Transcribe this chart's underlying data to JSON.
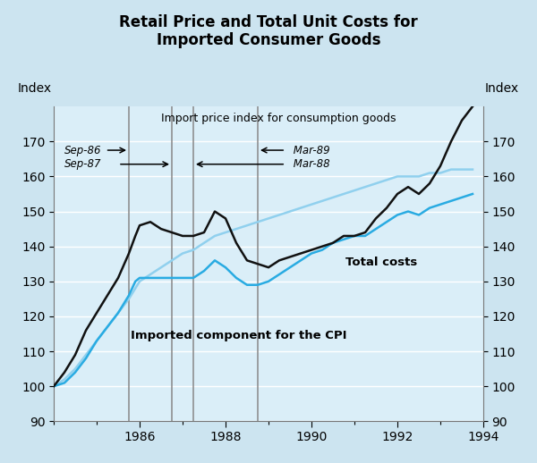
{
  "title": "Retail Price and Total Unit Costs for\nImported Consumer Goods",
  "bg_color": "#cce4f0",
  "plot_bg_color": "#daeef8",
  "grid_color": "#ffffff",
  "vline_color": "#888888",
  "ylim": [
    90,
    180
  ],
  "xlim": [
    1984.0,
    1994.0
  ],
  "yticks": [
    90,
    100,
    110,
    120,
    130,
    140,
    150,
    160,
    170
  ],
  "xticks": [
    1986,
    1988,
    1990,
    1992,
    1994
  ],
  "color_black": "#111111",
  "color_dark_blue": "#29ABE2",
  "color_light_blue": "#90D0EE",
  "label_import_price": "Import price index for consumption goods",
  "label_total_costs": "Total costs",
  "label_cpi": "Imported component for the CPI",
  "import_price_x": [
    1984.0,
    1984.25,
    1984.5,
    1984.75,
    1985.0,
    1985.25,
    1985.5,
    1985.75,
    1985.9,
    1986.0,
    1986.25,
    1986.5,
    1986.75,
    1987.0,
    1987.25,
    1987.5,
    1987.75,
    1988.0,
    1988.25,
    1988.5,
    1988.75,
    1989.0,
    1989.25,
    1989.5,
    1989.75,
    1990.0,
    1990.25,
    1990.5,
    1990.75,
    1991.0,
    1991.25,
    1991.5,
    1991.75,
    1992.0,
    1992.25,
    1992.5,
    1992.75,
    1993.0,
    1993.25,
    1993.5,
    1993.75
  ],
  "import_price_y": [
    100,
    104,
    109,
    116,
    121,
    126,
    131,
    138,
    143,
    146,
    147,
    145,
    144,
    143,
    143,
    144,
    150,
    148,
    141,
    136,
    135,
    134,
    136,
    137,
    138,
    139,
    140,
    141,
    143,
    143,
    144,
    148,
    151,
    155,
    157,
    155,
    158,
    163,
    170,
    176,
    180
  ],
  "total_costs_x": [
    1984.0,
    1984.25,
    1984.5,
    1984.75,
    1985.0,
    1985.25,
    1985.5,
    1985.75,
    1985.9,
    1986.0,
    1986.25,
    1986.5,
    1986.75,
    1987.0,
    1987.25,
    1987.5,
    1987.75,
    1988.0,
    1988.25,
    1988.5,
    1988.75,
    1989.0,
    1989.25,
    1989.5,
    1989.75,
    1990.0,
    1990.25,
    1990.5,
    1990.75,
    1991.0,
    1991.25,
    1991.5,
    1991.75,
    1992.0,
    1992.25,
    1992.5,
    1992.75,
    1993.0,
    1993.25,
    1993.5,
    1993.75
  ],
  "total_costs_y": [
    100,
    101,
    104,
    108,
    113,
    117,
    121,
    126,
    130,
    131,
    131,
    131,
    131,
    131,
    131,
    133,
    136,
    134,
    131,
    129,
    129,
    130,
    132,
    134,
    136,
    138,
    139,
    141,
    142,
    143,
    143,
    145,
    147,
    149,
    150,
    149,
    151,
    152,
    153,
    154,
    155
  ],
  "cpi_x": [
    1984.0,
    1984.25,
    1984.5,
    1984.75,
    1985.0,
    1985.25,
    1985.5,
    1985.75,
    1985.9,
    1986.0,
    1986.25,
    1986.5,
    1986.75,
    1987.0,
    1987.25,
    1987.5,
    1987.75,
    1988.0,
    1988.25,
    1988.5,
    1988.75,
    1989.0,
    1989.25,
    1989.5,
    1989.75,
    1990.0,
    1990.25,
    1990.5,
    1990.75,
    1991.0,
    1991.25,
    1991.5,
    1991.75,
    1992.0,
    1992.25,
    1992.5,
    1992.75,
    1993.0,
    1993.25,
    1993.5,
    1993.75
  ],
  "cpi_y": [
    100,
    102,
    105,
    109,
    113,
    117,
    121,
    125,
    128,
    130,
    132,
    134,
    136,
    138,
    139,
    141,
    143,
    144,
    145,
    146,
    147,
    148,
    149,
    150,
    151,
    152,
    153,
    154,
    155,
    156,
    157,
    158,
    159,
    160,
    160,
    160,
    161,
    161,
    162,
    162,
    162
  ],
  "vlines": [
    1985.75,
    1986.75,
    1987.25,
    1988.75
  ]
}
